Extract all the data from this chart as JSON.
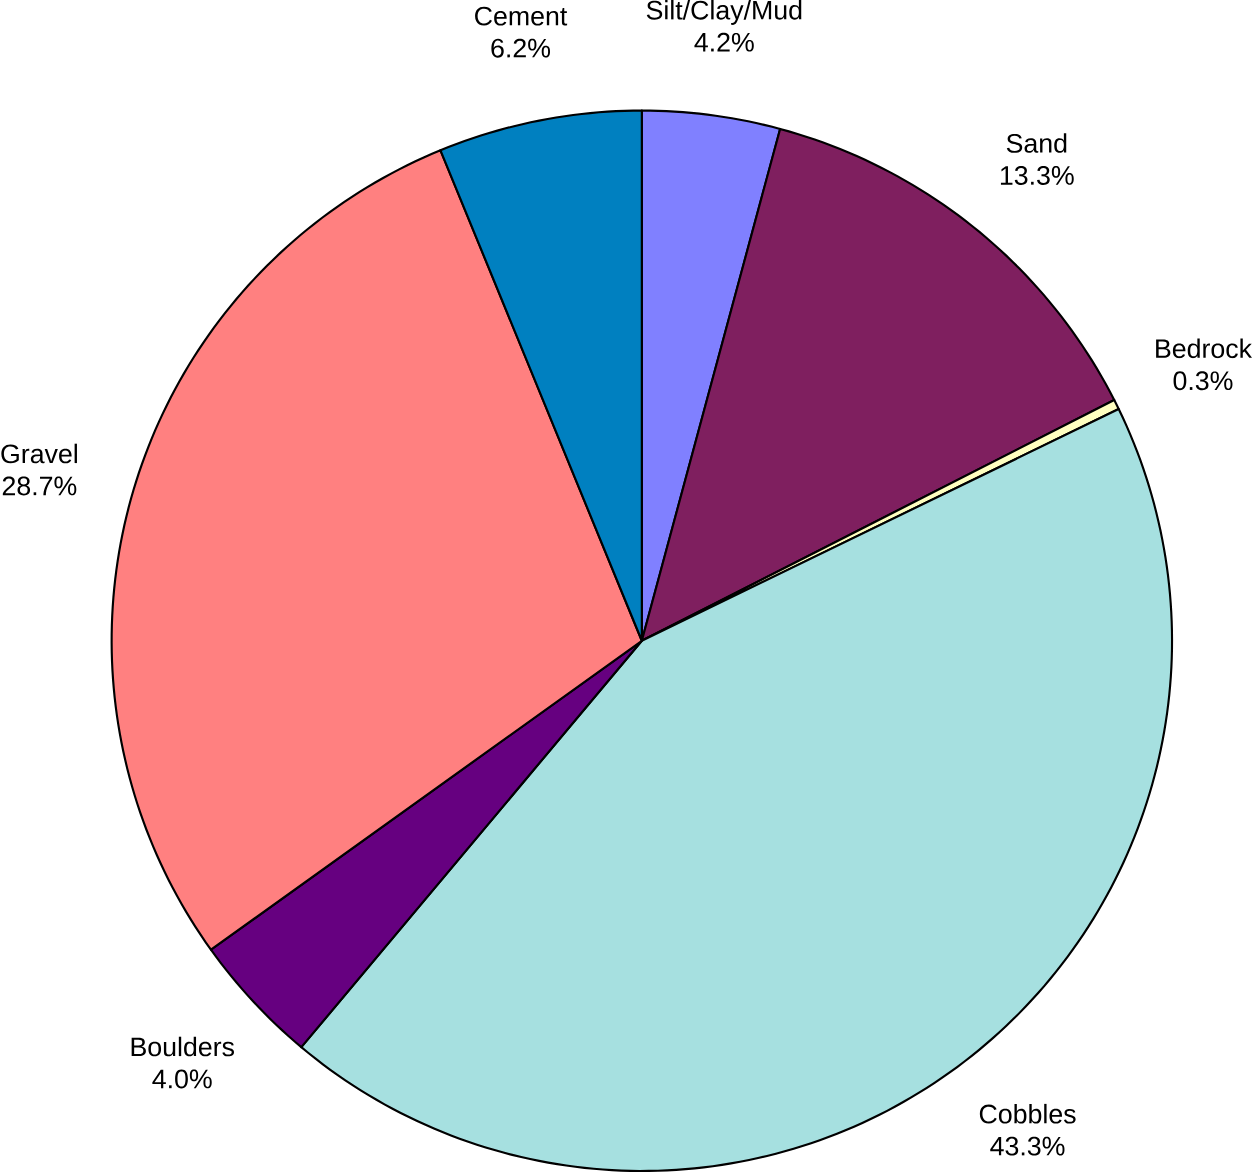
{
  "chart_data": {
    "type": "pie",
    "categories": [
      "Silt/Clay/Mud",
      "Sand",
      "Bedrock",
      "Cobbles",
      "Boulders",
      "Gravel",
      "Cement"
    ],
    "values": [
      4.2,
      13.3,
      0.3,
      43.3,
      4.0,
      28.7,
      6.2
    ],
    "colors": [
      "#8080ff",
      "#7f1f5f",
      "#ffffc0",
      "#a6e0e0",
      "#660080",
      "#ff8080",
      "#0080c0"
    ],
    "value_labels": [
      "4.2%",
      "13.3%",
      "0.3%",
      "43.3%",
      "4.0%",
      "28.7%",
      "6.2%"
    ]
  }
}
